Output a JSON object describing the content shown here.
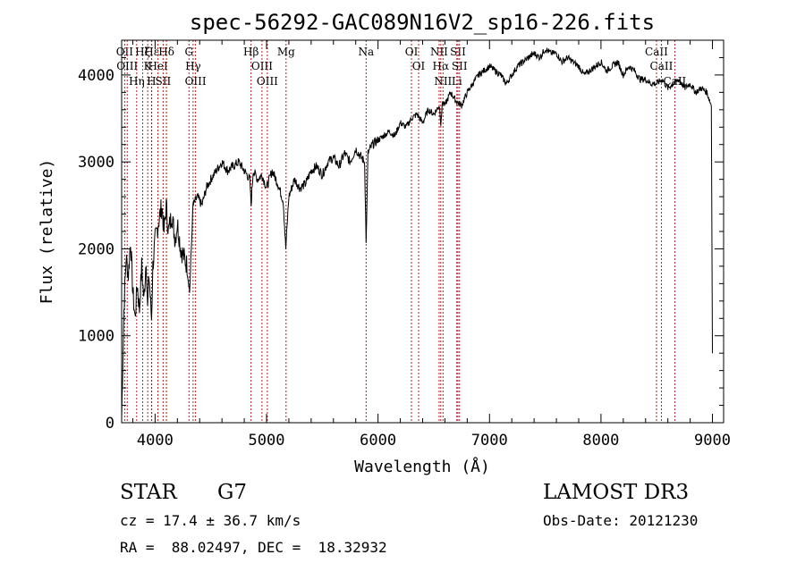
{
  "chart_data": {
    "type": "line",
    "title": "spec-56292-GAC089N16V2_sp16-226.fits",
    "xlabel": "Wavelength (Å)",
    "ylabel": "Flux (relative)",
    "xlim": [
      3700,
      9100
    ],
    "ylim": [
      0,
      4400
    ],
    "xticks": [
      4000,
      5000,
      6000,
      7000,
      8000,
      9000
    ],
    "yticks": [
      0,
      1000,
      2000,
      3000,
      4000
    ],
    "series": [
      {
        "name": "spectrum",
        "x": [
          3700,
          3720,
          3740,
          3760,
          3780,
          3800,
          3820,
          3840,
          3860,
          3880,
          3900,
          3920,
          3933,
          3945,
          3968,
          3980,
          4000,
          4030,
          4060,
          4080,
          4100,
          4120,
          4150,
          4180,
          4200,
          4230,
          4260,
          4290,
          4310,
          4340,
          4380,
          4420,
          4460,
          4500,
          4550,
          4600,
          4650,
          4700,
          4750,
          4800,
          4850,
          4861,
          4880,
          4920,
          4960,
          5000,
          5050,
          5100,
          5150,
          5172,
          5200,
          5250,
          5300,
          5350,
          5400,
          5450,
          5500,
          5550,
          5600,
          5650,
          5700,
          5750,
          5800,
          5850,
          5880,
          5893,
          5910,
          5950,
          6000,
          6050,
          6100,
          6150,
          6200,
          6250,
          6300,
          6350,
          6400,
          6450,
          6500,
          6550,
          6563,
          6580,
          6600,
          6650,
          6700,
          6750,
          6800,
          6850,
          6900,
          6950,
          7000,
          7050,
          7100,
          7150,
          7200,
          7250,
          7300,
          7350,
          7400,
          7450,
          7500,
          7550,
          7600,
          7650,
          7700,
          7750,
          7800,
          7850,
          7900,
          7950,
          8000,
          8050,
          8100,
          8150,
          8200,
          8250,
          8300,
          8350,
          8400,
          8450,
          8500,
          8550,
          8600,
          8650,
          8700,
          8750,
          8800,
          8850,
          8900,
          8950,
          8990,
          9000
        ],
        "values": [
          50,
          1300,
          1900,
          1700,
          2100,
          1500,
          1200,
          1600,
          1300,
          1800,
          1400,
          1900,
          1300,
          1700,
          1200,
          1800,
          2100,
          2300,
          2500,
          2200,
          2500,
          2200,
          2400,
          2100,
          2300,
          2000,
          1900,
          1800,
          1500,
          2500,
          2600,
          2500,
          2700,
          2800,
          2900,
          3000,
          2900,
          2950,
          3000,
          2900,
          2800,
          2500,
          2900,
          2800,
          2850,
          2700,
          2900,
          2750,
          2550,
          2000,
          2600,
          2800,
          2700,
          2750,
          2900,
          2950,
          2850,
          3000,
          3050,
          2950,
          3100,
          3000,
          3150,
          3050,
          3000,
          2050,
          3100,
          3200,
          3250,
          3300,
          3350,
          3300,
          3450,
          3400,
          3500,
          3550,
          3450,
          3600,
          3550,
          3650,
          3450,
          3700,
          3650,
          3800,
          3700,
          3650,
          3800,
          3900,
          4000,
          4050,
          4100,
          4050,
          4000,
          3900,
          4000,
          4100,
          4150,
          4200,
          4250,
          4200,
          4300,
          4250,
          4250,
          4150,
          4200,
          4150,
          4100,
          4000,
          4050,
          4100,
          4150,
          4050,
          4100,
          4150,
          4000,
          4100,
          4050,
          3950,
          3950,
          3900,
          3900,
          3950,
          3850,
          3900,
          3950,
          3850,
          3900,
          3800,
          3850,
          3800,
          3650,
          800
        ]
      }
    ],
    "grid": false,
    "lines": [
      {
        "x": 3727,
        "label": "OII"
      },
      {
        "x": 3750,
        "label": "OIII"
      },
      {
        "x": 3835,
        "label": "Hη"
      },
      {
        "x": 3889,
        "label": "Hζ"
      },
      {
        "x": 3934,
        "label": "K"
      },
      {
        "x": 3968,
        "label": "H"
      },
      {
        "x": 3970,
        "label": "Hε"
      },
      {
        "x": 4026,
        "label": "HeI"
      },
      {
        "x": 4072,
        "label": "SII"
      },
      {
        "x": 4102,
        "label": "Hδ"
      },
      {
        "x": 4304,
        "label": "G"
      },
      {
        "x": 4341,
        "label": "Hγ"
      },
      {
        "x": 4363,
        "label": "OIII"
      },
      {
        "x": 4861,
        "label": "Hβ"
      },
      {
        "x": 4959,
        "label": "OIII"
      },
      {
        "x": 5007,
        "label": "OIII"
      },
      {
        "x": 5175,
        "label": "Mg"
      },
      {
        "x": 5893,
        "label": "Na"
      },
      {
        "x": 6300,
        "label": "OI"
      },
      {
        "x": 6364,
        "label": "OI"
      },
      {
        "x": 6548,
        "label": "NII"
      },
      {
        "x": 6563,
        "label": "Hα"
      },
      {
        "x": 6583,
        "label": "NII"
      },
      {
        "x": 6707,
        "label": "Li"
      },
      {
        "x": 6717,
        "label": "SII"
      },
      {
        "x": 6731,
        "label": "SII"
      },
      {
        "x": 8498,
        "label": "CaII"
      },
      {
        "x": 8542,
        "label": "CaII"
      },
      {
        "x": 8662,
        "label": "CaII"
      }
    ]
  },
  "info": {
    "class": "STAR",
    "subclass": "G7",
    "survey": "LAMOST DR3",
    "redshift": "cz = 17.4 ± 36.7 km/s",
    "obs_date": "Obs-Date: 20121230",
    "coords": "RA =  88.02497, DEC =  18.32932"
  }
}
